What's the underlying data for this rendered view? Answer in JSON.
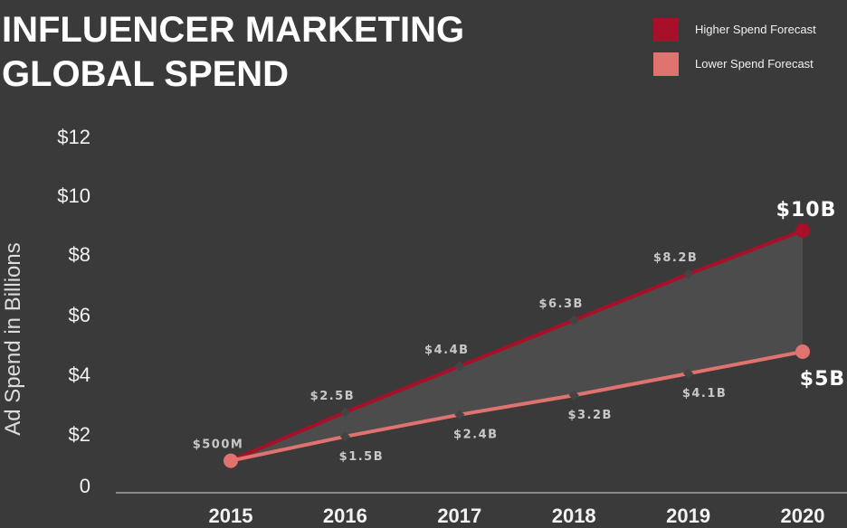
{
  "chart_data": {
    "type": "line",
    "title_lines": [
      "INFLUENCER MARKETING",
      "GLOBAL SPEND"
    ],
    "ylabel": "Ad Spend in Billions",
    "xlabel": "",
    "x": [
      "2015",
      "2016",
      "2017",
      "2018",
      "2019",
      "2020"
    ],
    "y_ticks": [
      "0",
      "$2",
      "$4",
      "$6",
      "$8",
      "$10",
      "$12"
    ],
    "ylim": [
      0,
      12
    ],
    "shaded_area_between_series": true,
    "grid": false,
    "legend_position": "top-right",
    "series": [
      {
        "name": "Higher Spend Forecast",
        "color": "#a8102a",
        "values": [
          0.5,
          2.5,
          4.4,
          6.3,
          8.2,
          10
        ],
        "labels": [
          "$500M",
          "$2.5B",
          "$4.4B",
          "$6.3B",
          "$8.2B",
          "$10B"
        ]
      },
      {
        "name": "Lower Spend Forecast",
        "color": "#e0736f",
        "values": [
          0.5,
          1.5,
          2.4,
          3.2,
          4.1,
          5
        ],
        "labels": [
          "",
          "$1.5B",
          "$2.4B",
          "$3.2B",
          "$4.1B",
          "$5B"
        ]
      }
    ]
  },
  "colors": {
    "background": "#3a3a3a",
    "text": "#ffffff",
    "axis_text": "#f2f2f2",
    "point_label": "#c8c8c8",
    "area_fill": "#4c4c4c"
  }
}
